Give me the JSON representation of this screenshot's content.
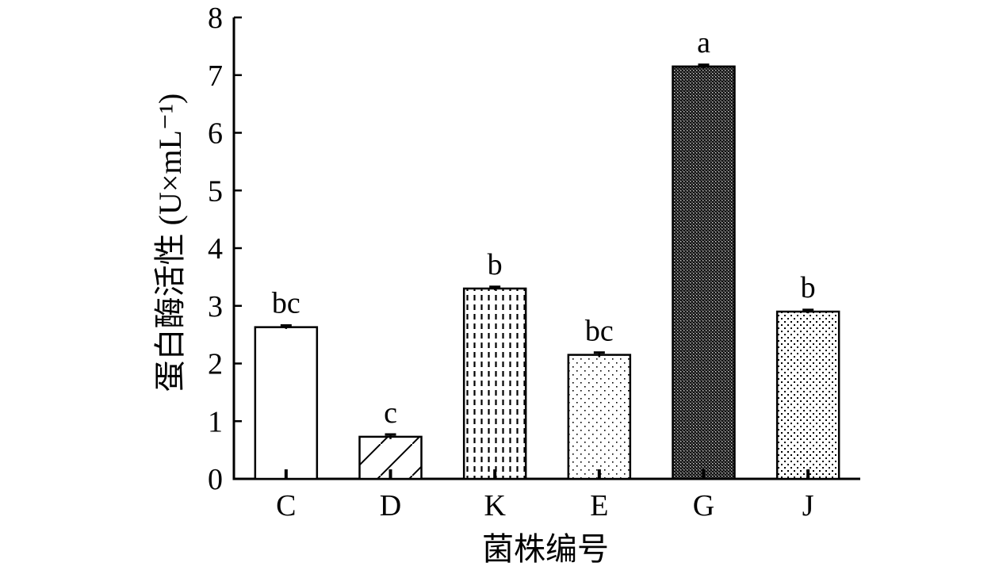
{
  "chart_data": {
    "type": "bar",
    "title": "",
    "xlabel": "菌株编号",
    "ylabel": "蛋白酶活性 (U×mL⁻¹)",
    "ylim": [
      0,
      8
    ],
    "yticks": [
      "0",
      "1",
      "2",
      "3",
      "4",
      "5",
      "6",
      "7",
      "8"
    ],
    "categories": [
      "C",
      "D",
      "K",
      "E",
      "G",
      "J"
    ],
    "values": [
      2.63,
      0.73,
      3.3,
      2.15,
      7.15,
      2.9
    ],
    "errors": [
      0.03,
      0.04,
      0.03,
      0.04,
      0.03,
      0.03
    ],
    "significance_labels": [
      "bc",
      "c",
      "b",
      "bc",
      "a",
      "b"
    ],
    "fill_patterns": [
      "blank",
      "diagonal",
      "vertical-dash",
      "sparse-dots",
      "dense-crosshatch",
      "dots"
    ],
    "grid": false,
    "legend": "none"
  }
}
